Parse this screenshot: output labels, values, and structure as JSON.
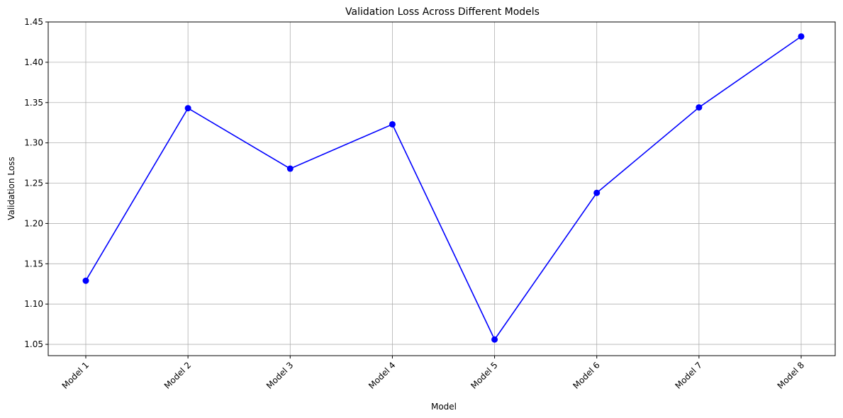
{
  "chart_data": {
    "type": "line",
    "title": "Validation Loss Across Different Models",
    "xlabel": "Model",
    "ylabel": "Validation Loss",
    "categories": [
      "Model 1",
      "Model 2",
      "Model 3",
      "Model 4",
      "Model 5",
      "Model 6",
      "Model 7",
      "Model 8"
    ],
    "series": [
      {
        "values": [
          1.129,
          1.343,
          1.268,
          1.323,
          1.056,
          1.238,
          1.344,
          1.432
        ],
        "color": "#0000ff",
        "marker": "circle"
      }
    ],
    "ylim": [
      1.036,
      1.45
    ],
    "yticks": [
      1.05,
      1.1,
      1.15,
      1.2,
      1.25,
      1.3,
      1.35,
      1.4,
      1.45
    ],
    "ytick_labels": [
      "1.05",
      "1.10",
      "1.15",
      "1.20",
      "1.25",
      "1.30",
      "1.35",
      "1.40",
      "1.45"
    ],
    "grid": true,
    "legend": "none"
  }
}
